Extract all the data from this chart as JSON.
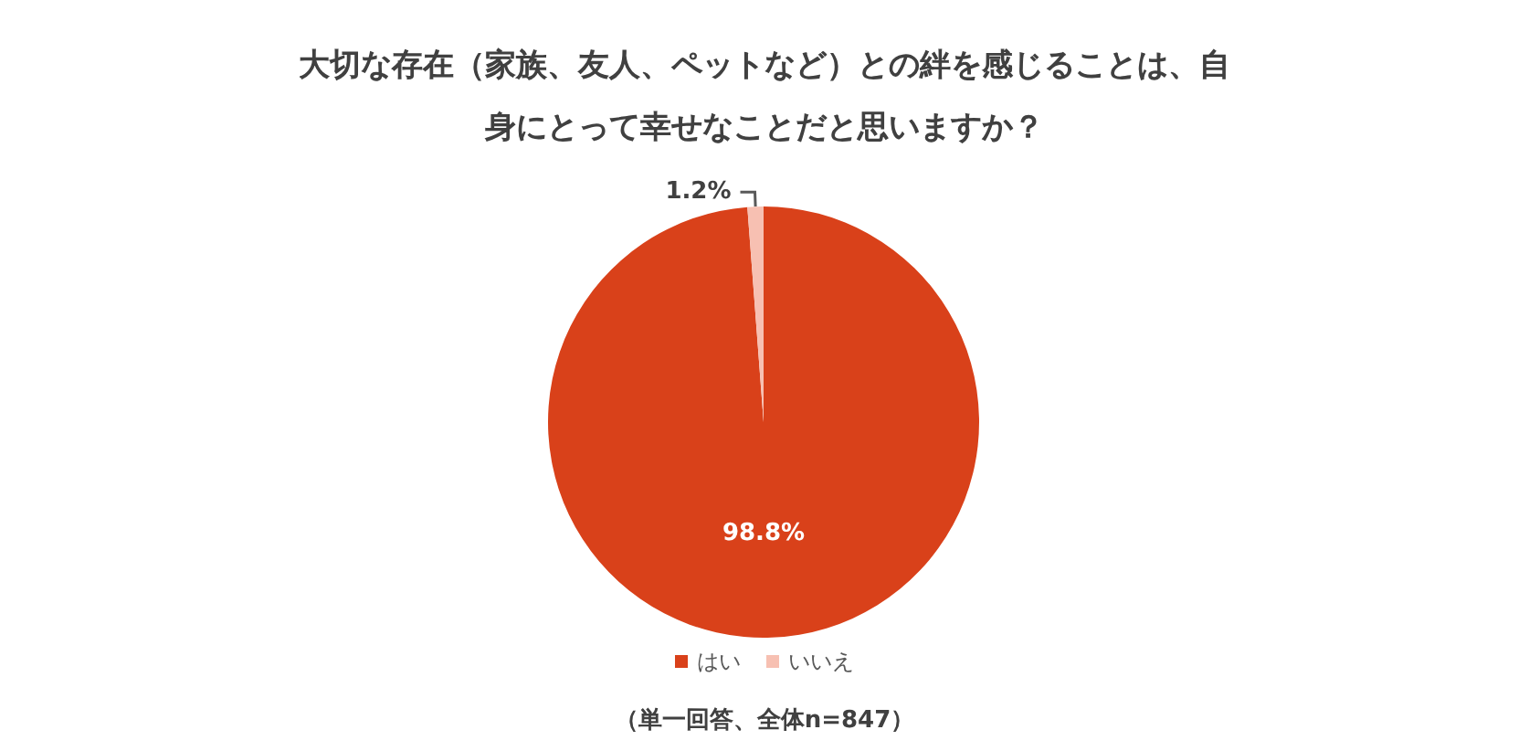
{
  "chart_data": {
    "type": "pie",
    "title": "大切な存在（家族、友人、ペットなど）との絆を感じることは、自身にとって幸せなことだと思いますか？",
    "categories": [
      "はい",
      "いいえ"
    ],
    "values": [
      98.8,
      1.2
    ],
    "colors": [
      "#d9411a",
      "#f7c0b2"
    ],
    "value_labels": [
      "98.8%",
      "1.2%"
    ],
    "legend": "bottom",
    "annotations": [
      "（単一回答、全体n=847）"
    ]
  }
}
